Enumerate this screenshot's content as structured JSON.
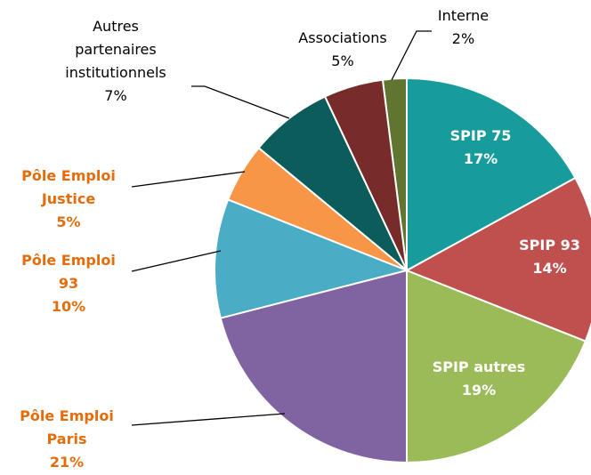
{
  "chart_data": {
    "type": "pie",
    "categories": [
      "SPIP 75",
      "SPIP 93",
      "SPIP autres",
      "Pôle Emploi Paris",
      "Pôle Emploi 93",
      "Pôle Emploi Justice",
      "Autres partenaires institutionnels",
      "Associations",
      "Interne"
    ],
    "values": [
      17,
      14,
      19,
      21,
      10,
      5,
      7,
      5,
      2
    ],
    "value_labels": [
      "17%",
      "14%",
      "19%",
      "21%",
      "10%",
      "5%",
      "7%",
      "5%",
      "2%"
    ],
    "colors": [
      "#189b9b",
      "#c0504d",
      "#9bbb59",
      "#8064a2",
      "#4bacc6",
      "#f79646",
      "#0b5c5a",
      "#772c2a",
      "#5f7530"
    ]
  }
}
